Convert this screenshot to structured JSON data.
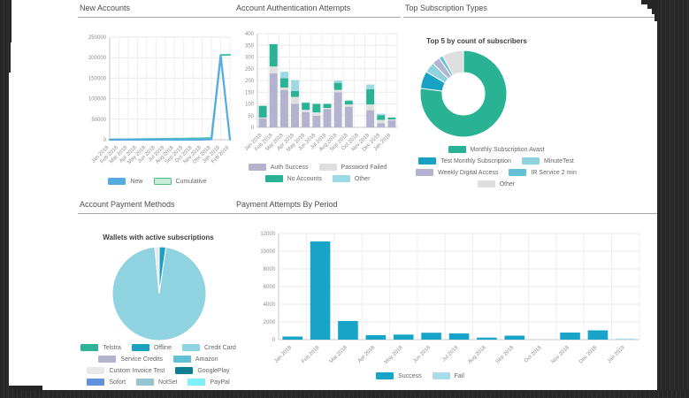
{
  "frame": {
    "backdrop_color": "#262626",
    "page_color": "#ffffff"
  },
  "panels": {
    "new_accounts": {
      "title": "New Accounts",
      "chart_data": {
        "type": "line",
        "categories": [
          "Jan 2018",
          "Feb 2018",
          "Mar 2018",
          "Apr 2018",
          "May 2018",
          "Jun 2018",
          "Jul 2018",
          "Aug 2018",
          "Sep 2018",
          "Oct 2018",
          "Nov 2018",
          "Dec 2018",
          "Jan 2019",
          "Feb 2019"
        ],
        "series": [
          {
            "name": "New",
            "color": "#55aae0",
            "values": [
              200,
              300,
              250,
              300,
              350,
              300,
              280,
              300,
              320,
              300,
              350,
              900,
              205000,
              400
            ]
          },
          {
            "name": "Cumulative",
            "color": "#4dc4ae",
            "values": [
              200,
              500,
              750,
              1050,
              1400,
              1700,
              1980,
              2280,
              2600,
              2900,
              3250,
              4150,
              206500,
              207000
            ]
          }
        ],
        "ylim": [
          0,
          250000
        ],
        "yticks": [
          "0",
          "50000",
          "100000",
          "150000",
          "200000",
          "250000"
        ],
        "grid": true,
        "legend_position": "bottom",
        "legend": [
          {
            "label": "New",
            "fill": "#55aae0",
            "border": "#55aae0"
          },
          {
            "label": "Cumulative",
            "fill": "#c9ecd9",
            "border": "#57bd84"
          }
        ]
      }
    },
    "auth_attempts": {
      "title": "Account Authentication Attempts",
      "chart_data": {
        "type": "bar",
        "stacked": true,
        "categories": [
          "Jan 2018",
          "Feb 2018",
          "Mar 2018",
          "Apr 2018",
          "May 2018",
          "Jun 2018",
          "Jul 2018",
          "Aug 2018",
          "Sep 2018",
          "Oct 2018",
          "Nov 2018",
          "Dec 2018",
          "Jan 2019"
        ],
        "series": [
          {
            "name": "Auth Success",
            "color": "#b3b3cf",
            "values": [
              38,
              230,
              160,
              100,
              65,
              50,
              78,
              150,
              88,
              0,
              73,
              18,
              30
            ]
          },
          {
            "name": "Password Failed",
            "color": "#dfdfdf",
            "values": [
              4,
              30,
              10,
              30,
              10,
              14,
              5,
              10,
              10,
              0,
              25,
              14,
              4
            ]
          },
          {
            "name": "No Accounts",
            "color": "#29b294",
            "values": [
              50,
              95,
              40,
              25,
              30,
              36,
              17,
              30,
              15,
              0,
              65,
              20,
              8
            ]
          },
          {
            "name": "Other",
            "color": "#9bdae4",
            "values": [
              0,
              0,
              27,
              47,
              2,
              0,
              0,
              10,
              3,
              0,
              20,
              6,
              1
            ]
          }
        ],
        "ylim": [
          0,
          400
        ],
        "yticks": [
          "0",
          "50",
          "100",
          "150",
          "200",
          "250",
          "300",
          "350",
          "400"
        ],
        "grid": true,
        "legend_position": "bottom"
      }
    },
    "top_subscriptions": {
      "title": "Top Subscription Types",
      "inner_title": "Top 5 by count of subscribers",
      "chart_data": {
        "type": "pie",
        "donut": true,
        "slices": [
          {
            "label": "Monthly Subscription Avast",
            "color": "#29b294",
            "value": 77
          },
          {
            "label": "Test Monthly Subscription",
            "color": "#17a2c4",
            "value": 6.5
          },
          {
            "label": "MinuteTest",
            "color": "#8fd2de",
            "value": 4
          },
          {
            "label": "Weekly Digital Access",
            "color": "#b3b3cf",
            "value": 3
          },
          {
            "label": "IR Service 2 min",
            "color": "#63c0d6",
            "value": 1.5
          },
          {
            "label": "Other",
            "color": "#dedede",
            "value": 8
          }
        ],
        "legend_position": "bottom"
      }
    },
    "payment_methods": {
      "title": "Account Payment Methods",
      "inner_title": "Wallets with active subscriptions",
      "chart_data": {
        "type": "pie",
        "donut": false,
        "slices": [
          {
            "label": "Telstra",
            "color": "#2eb398",
            "value": 0
          },
          {
            "label": "Offline",
            "color": "#1ba0c4",
            "value": 2.3
          },
          {
            "label": "Credit Card",
            "color": "#8fd2e0",
            "value": 96.2
          },
          {
            "label": "Service Credits",
            "color": "#b3b3cf",
            "value": 0
          },
          {
            "label": "Amazon",
            "color": "#64c0d4",
            "value": 0
          },
          {
            "label": "Custom Invoice Test",
            "color": "#e8e8e8",
            "value": 1.5
          },
          {
            "label": "GooglePlay",
            "color": "#0e7e95",
            "value": 0
          },
          {
            "label": "Sofort",
            "color": "#6292dc",
            "value": 0
          },
          {
            "label": "NotSet",
            "color": "#95c7ce",
            "value": 0
          },
          {
            "label": "PayPal",
            "color": "#7ef0fb",
            "value": 0
          }
        ],
        "legend_position": "bottom"
      }
    },
    "payment_attempts": {
      "title": "Payment Attempts By Period",
      "chart_data": {
        "type": "bar",
        "stacked": true,
        "categories": [
          "Jan 2018",
          "Feb 2018",
          "Mar 2018",
          "Apr 2018",
          "May 2018",
          "Jun 2018",
          "Jul 2018",
          "Aug 2018",
          "Sep 2018",
          "Oct 2018",
          "Nov 2018",
          "Dec 2018",
          "Jan 2019"
        ],
        "series": [
          {
            "name": "Success",
            "color": "#18a4c8",
            "values": [
              350,
              11100,
              2100,
              500,
              570,
              780,
              700,
              230,
              450,
              0,
              800,
              1050,
              0
            ]
          },
          {
            "name": "Fail",
            "color": "#a8dcea",
            "values": [
              0,
              0,
              0,
              0,
              0,
              0,
              0,
              0,
              0,
              0,
              0,
              0,
              120
            ]
          }
        ],
        "ylim": [
          0,
          12000
        ],
        "yticks": [
          "0",
          "2000",
          "4000",
          "6000",
          "8000",
          "10000",
          "12000"
        ],
        "grid": true,
        "legend_position": "bottom"
      }
    }
  }
}
